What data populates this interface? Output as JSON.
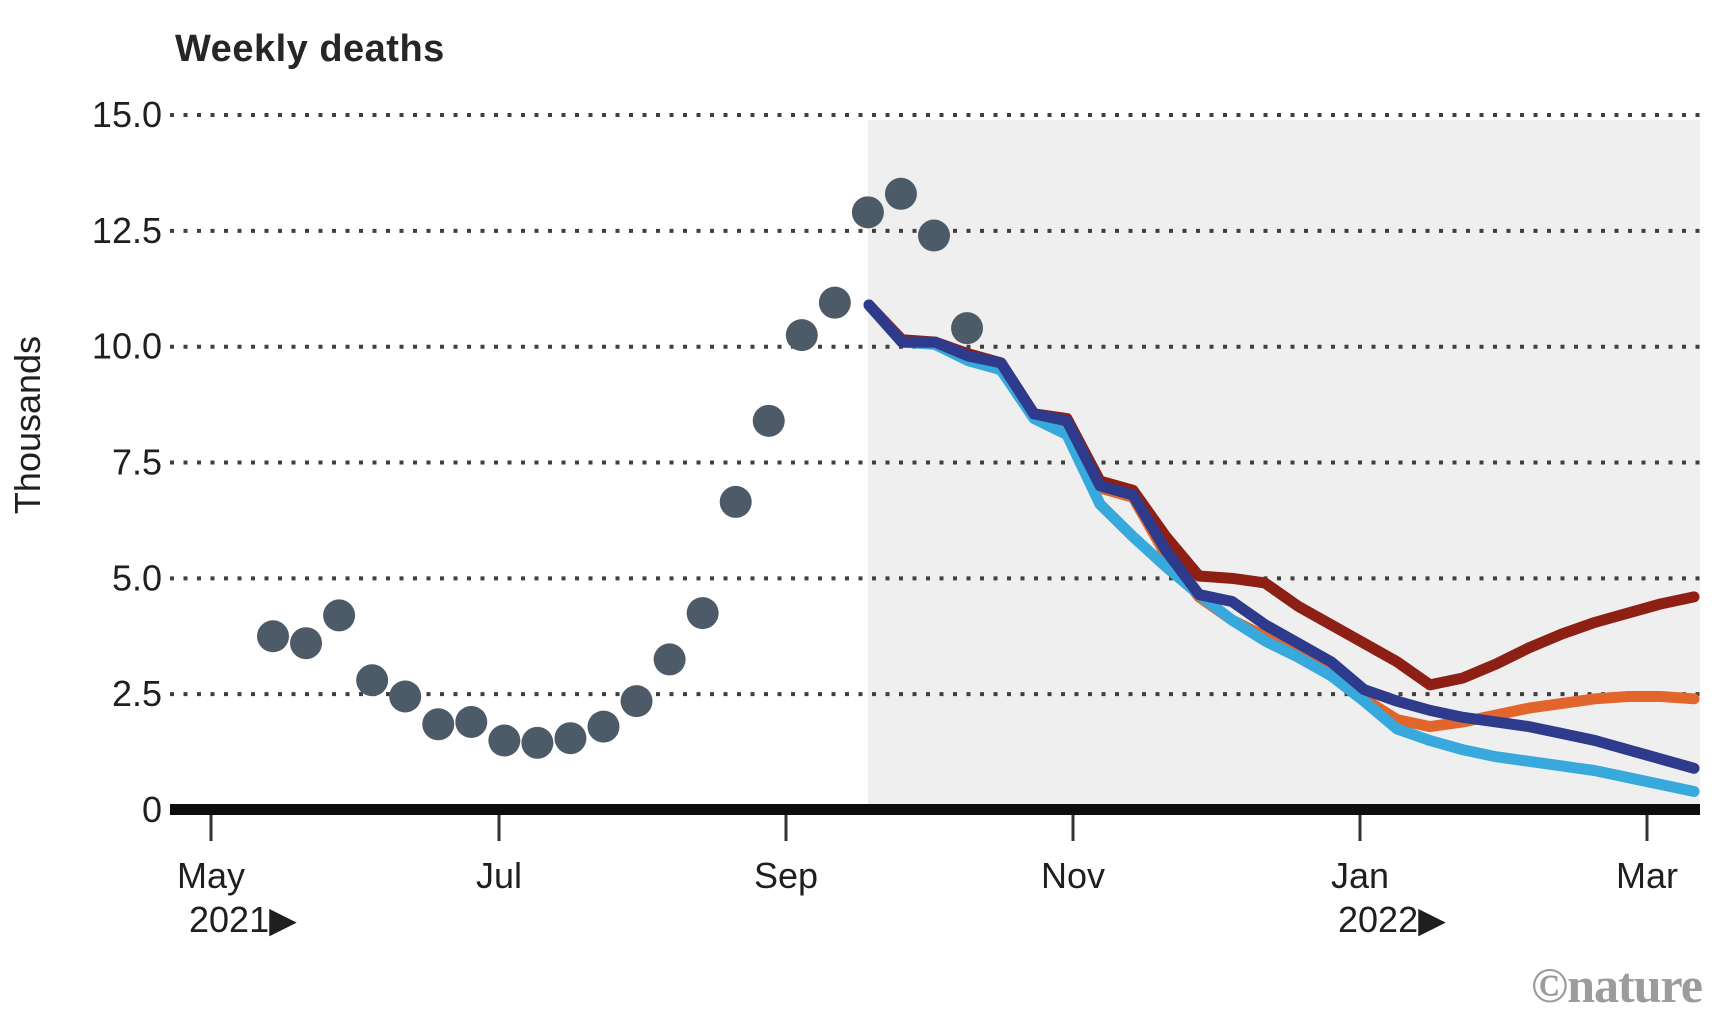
{
  "title": "Weekly deaths",
  "y_axis": {
    "label": "Thousands",
    "tick_labels": [
      "15.0",
      "12.5",
      "10.0",
      "7.5",
      "5.0",
      "2.5",
      "0"
    ],
    "tick_values": [
      15,
      12.5,
      10,
      7.5,
      5,
      2.5,
      0
    ]
  },
  "x_axis": {
    "ticks": [
      {
        "label": "May",
        "year_label": "2021▶"
      },
      {
        "label": "Jul",
        "year_label": ""
      },
      {
        "label": "Sep",
        "year_label": ""
      },
      {
        "label": "Nov",
        "year_label": ""
      },
      {
        "label": "Jan",
        "year_label": "2022▶"
      },
      {
        "label": "Mar",
        "year_label": ""
      }
    ]
  },
  "watermark": "©nature",
  "colors": {
    "scatter_dot": "#4d5a68",
    "projection_dark_red": "#8e1f15",
    "projection_orange": "#e2662c",
    "projection_navy": "#2e3a8c",
    "projection_light_blue": "#38a9dc",
    "forecast_shading": "#efefef",
    "gridline": "#3f3f3f",
    "axis": "#0d0d0d",
    "title_text": "#262626",
    "watermark_gray": "#9c9c9c"
  },
  "chart_data": {
    "type": "scatter + line (observed weekly deaths with model projections)",
    "title": "Weekly deaths",
    "xlabel": "",
    "ylabel": "Thousands",
    "ylim": [
      0,
      15
    ],
    "grid": "horizontal dotted lines every 2.5 thousand",
    "legend_position": "none (no legend shown)",
    "x_tick_labels": [
      "May 2021",
      "Jul",
      "Sep",
      "Nov",
      "Jan 2022",
      "Mar"
    ],
    "forecast_shaded_region": {
      "start": "2021-09-18",
      "end": "2022-03-15"
    },
    "observed_scatter": {
      "name": "observed weekly deaths (dots)",
      "dates": [
        "2021-05-14",
        "2021-05-21",
        "2021-05-28",
        "2021-06-04",
        "2021-06-11",
        "2021-06-18",
        "2021-06-25",
        "2021-07-02",
        "2021-07-09",
        "2021-07-16",
        "2021-07-23",
        "2021-07-30",
        "2021-08-06",
        "2021-08-13",
        "2021-08-20",
        "2021-08-27",
        "2021-09-03",
        "2021-09-10",
        "2021-09-17",
        "2021-09-24",
        "2021-10-01",
        "2021-10-08"
      ],
      "values": [
        3.75,
        3.6,
        4.2,
        2.8,
        2.45,
        1.85,
        1.9,
        1.5,
        1.45,
        1.55,
        1.8,
        2.35,
        3.25,
        4.25,
        6.65,
        8.4,
        10.25,
        10.95,
        12.9,
        13.3,
        12.4,
        10.4
      ]
    },
    "projections": {
      "dates": [
        "2021-09-18",
        "2021-09-25",
        "2021-10-02",
        "2021-10-09",
        "2021-10-16",
        "2021-10-23",
        "2021-10-30",
        "2021-11-06",
        "2021-11-13",
        "2021-11-20",
        "2021-11-27",
        "2021-12-04",
        "2021-12-11",
        "2021-12-18",
        "2021-12-25",
        "2022-01-01",
        "2022-01-08",
        "2022-01-15",
        "2022-01-22",
        "2022-01-29",
        "2022-02-05",
        "2022-02-12",
        "2022-02-19",
        "2022-02-26",
        "2022-03-05",
        "2022-03-12"
      ],
      "series": [
        {
          "id": "projection-orange",
          "color_key": "projection_orange",
          "values": [
            10.9,
            10.1,
            10.1,
            9.8,
            9.6,
            8.5,
            8.35,
            6.95,
            6.75,
            5.5,
            4.6,
            4.1,
            3.75,
            3.4,
            3.0,
            2.4,
            1.95,
            1.8,
            1.9,
            2.05,
            2.2,
            2.3,
            2.4,
            2.45,
            2.45,
            2.4
          ]
        },
        {
          "id": "projection-dark-red",
          "color_key": "projection_dark_red",
          "values": [
            10.9,
            10.15,
            10.1,
            9.85,
            9.65,
            8.55,
            8.45,
            7.1,
            6.9,
            5.9,
            5.05,
            5.0,
            4.9,
            4.4,
            4.0,
            3.6,
            3.2,
            2.7,
            2.85,
            3.15,
            3.5,
            3.8,
            4.05,
            4.25,
            4.45,
            4.6
          ]
        },
        {
          "id": "projection-light-blue",
          "color_key": "projection_light_blue",
          "values": [
            10.9,
            10.1,
            10.05,
            9.7,
            9.5,
            8.45,
            8.1,
            6.6,
            5.9,
            5.25,
            4.65,
            4.1,
            3.65,
            3.3,
            2.9,
            2.35,
            1.75,
            1.5,
            1.3,
            1.15,
            1.05,
            0.95,
            0.85,
            0.7,
            0.55,
            0.4
          ]
        },
        {
          "id": "projection-navy",
          "color_key": "projection_navy",
          "values": [
            10.9,
            10.1,
            10.1,
            9.8,
            9.65,
            8.55,
            8.4,
            7.0,
            6.8,
            5.6,
            4.65,
            4.5,
            4.0,
            3.6,
            3.2,
            2.6,
            2.35,
            2.15,
            2.0,
            1.9,
            1.8,
            1.65,
            1.5,
            1.3,
            1.1,
            0.9
          ]
        }
      ]
    }
  }
}
